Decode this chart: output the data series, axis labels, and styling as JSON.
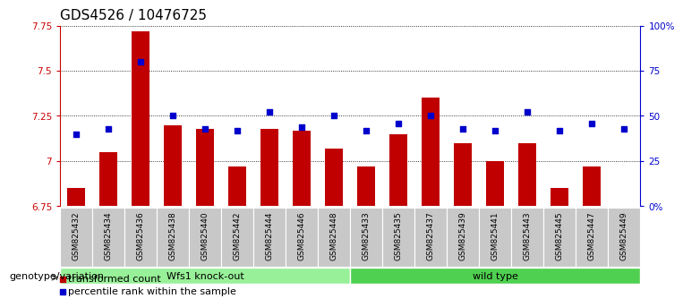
{
  "title": "GDS4526 / 10476725",
  "samples": [
    "GSM825432",
    "GSM825434",
    "GSM825436",
    "GSM825438",
    "GSM825440",
    "GSM825442",
    "GSM825444",
    "GSM825446",
    "GSM825448",
    "GSM825433",
    "GSM825435",
    "GSM825437",
    "GSM825439",
    "GSM825441",
    "GSM825443",
    "GSM825445",
    "GSM825447",
    "GSM825449"
  ],
  "bar_values": [
    6.85,
    7.05,
    7.72,
    7.2,
    7.18,
    6.97,
    7.18,
    7.17,
    7.07,
    6.97,
    7.15,
    7.35,
    7.1,
    7.0,
    7.1,
    6.85,
    6.97,
    6.73
  ],
  "dot_percentiles": [
    40,
    43,
    80,
    50,
    43,
    42,
    52,
    44,
    50,
    42,
    46,
    50,
    43,
    42,
    52,
    42,
    46,
    43
  ],
  "groups": [
    {
      "label": "Wfs1 knock-out",
      "start": 0,
      "end": 9,
      "color": "#98F098"
    },
    {
      "label": "wild type",
      "start": 9,
      "end": 18,
      "color": "#50D050"
    }
  ],
  "bar_color": "#C00000",
  "dot_color": "#0000CC",
  "ylim": [
    6.75,
    7.75
  ],
  "y_ticks": [
    6.75,
    7.0,
    7.25,
    7.5,
    7.75
  ],
  "y_tick_labels": [
    "6.75",
    "7",
    "7.25",
    "7.5",
    "7.75"
  ],
  "right_y_ticks": [
    0,
    25,
    50,
    75,
    100
  ],
  "right_y_tick_labels": [
    "0%",
    "25",
    "50",
    "75",
    "100%"
  ],
  "legend_bar_label": "transformed count",
  "legend_dot_label": "percentile rank within the sample",
  "genotype_label": "genotype/variation",
  "title_fontsize": 11,
  "tick_fontsize": 7.5,
  "sample_label_fontsize": 6.5
}
